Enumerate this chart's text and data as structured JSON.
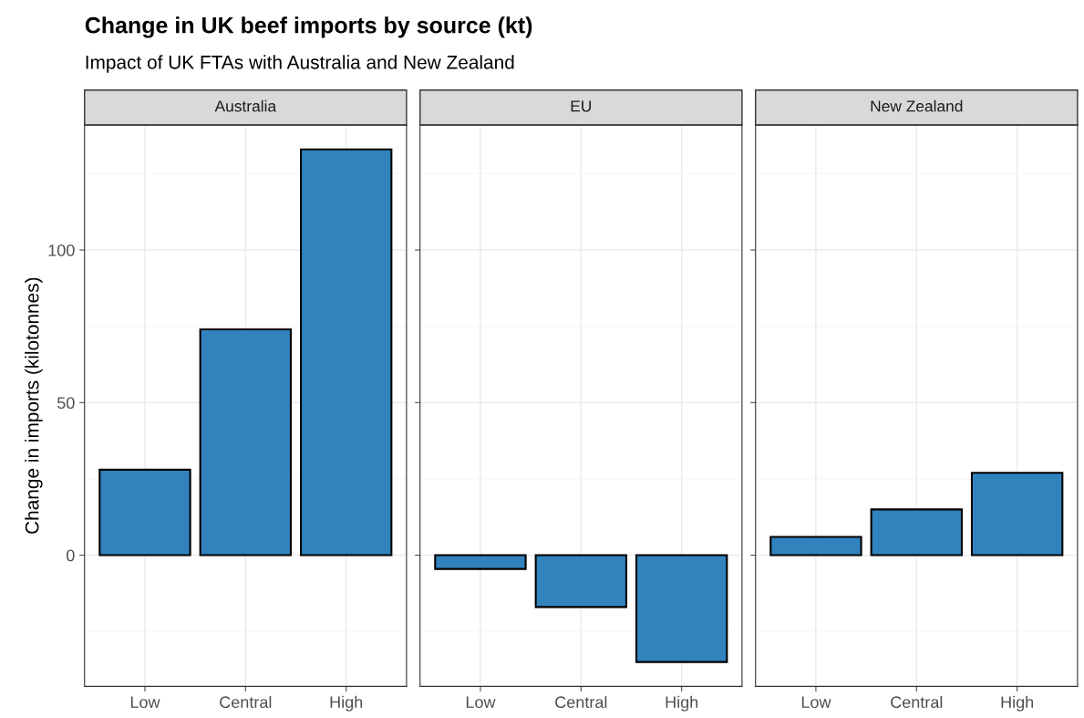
{
  "chart_data": [
    {
      "type": "bar",
      "title": "Australia",
      "ylabel": "Change in imports (kilotonnes)",
      "annotations": [
        "Change in UK beef imports by source (kt)",
        "Impact of UK FTAs with Australia and New Zealand"
      ],
      "categories": [
        "Low",
        "Central",
        "High"
      ],
      "values": [
        28,
        74,
        133
      ],
      "color": "#3182bd",
      "ylim": [
        -43,
        141
      ],
      "yticks": [
        0,
        50,
        100
      ],
      "grid": true
    },
    {
      "type": "bar",
      "title": "EU",
      "categories": [
        "Low",
        "Central",
        "High"
      ],
      "values": [
        -4.5,
        -17,
        -35
      ],
      "color": "#3182bd",
      "ylim": [
        -43,
        141
      ],
      "yticks": [
        0,
        50,
        100
      ],
      "grid": true,
      "tick_labels": "x"
    },
    {
      "type": "bar",
      "title": "New Zealand",
      "categories": [
        "Low",
        "Central",
        "High"
      ],
      "values": [
        6,
        15,
        27
      ],
      "color": "#3182bd",
      "ylim": [
        -43,
        141
      ],
      "yticks": [
        0,
        50,
        100
      ],
      "grid": true,
      "tick_labels": "x"
    }
  ]
}
